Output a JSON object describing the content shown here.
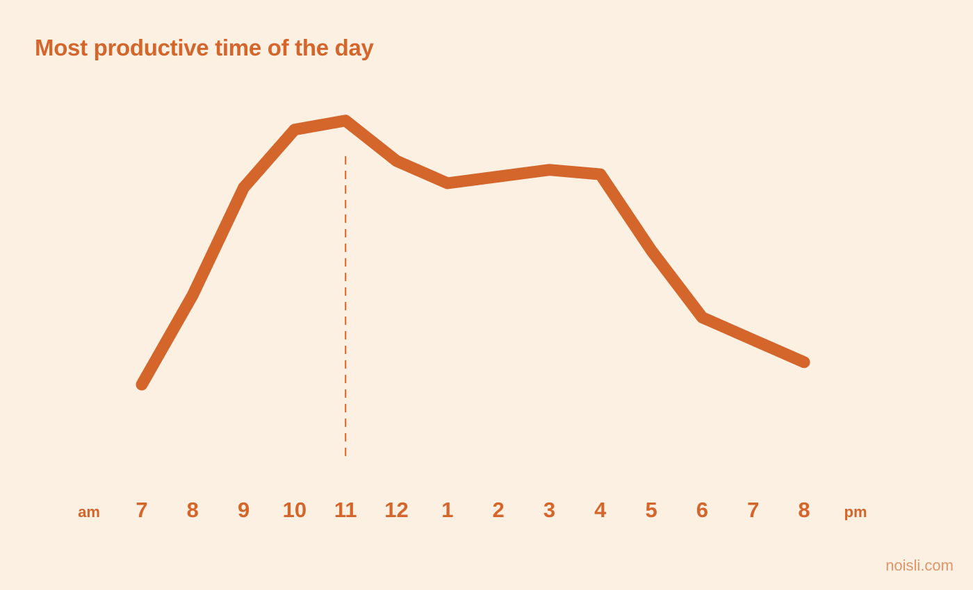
{
  "page": {
    "footer": "noisli.com"
  },
  "chart_data": {
    "type": "line",
    "title": "Most productive time of the day",
    "xlabel": "",
    "ylabel": "",
    "am_label": "am",
    "pm_label": "pm",
    "categories": [
      "7",
      "8",
      "9",
      "10",
      "11",
      "12",
      "1",
      "2",
      "3",
      "4",
      "5",
      "6",
      "7",
      "8"
    ],
    "values": [
      28,
      48,
      72,
      85,
      87,
      78,
      73,
      74.5,
      76,
      75,
      58,
      43,
      38,
      33
    ],
    "ylim": [
      10,
      100
    ],
    "y_axis_shown": false,
    "grid": false,
    "marker_line_at": "11",
    "color": "#d4652b",
    "background": "#fcf0e3"
  }
}
